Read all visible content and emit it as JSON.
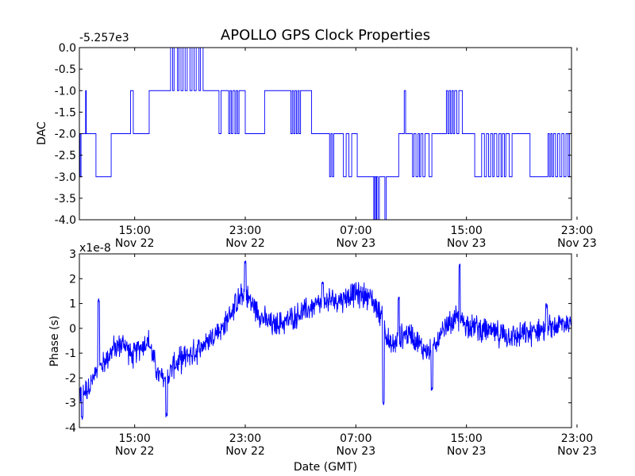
{
  "title": "APOLLO GPS Clock Properties",
  "chart_data": [
    {
      "type": "line",
      "ylabel": "DAC",
      "offset_label": "-5.257e3",
      "ylim": [
        -4.0,
        0.0
      ],
      "y_ticks": [
        "0.0",
        "-0.5",
        "-1.0",
        "-1.5",
        "-2.0",
        "-2.5",
        "-3.0",
        "-3.5",
        "-4.0"
      ],
      "x_ticks": [
        {
          "time": "15:00",
          "date": "Nov 22"
        },
        {
          "time": "23:00",
          "date": "Nov 22"
        },
        {
          "time": "07:00",
          "date": "Nov 23"
        },
        {
          "time": "15:00",
          "date": "Nov 23"
        },
        {
          "time": "23:00",
          "date": "Nov 23"
        }
      ],
      "xlim_hours": [
        11.0,
        46.6
      ],
      "line_color": "#0000ff",
      "series_note": "step signal between integer DAC levels",
      "points": [
        [
          11.0,
          -2
        ],
        [
          11.05,
          -3
        ],
        [
          11.12,
          -2
        ],
        [
          11.45,
          -1
        ],
        [
          11.5,
          -2
        ],
        [
          12.0,
          -2
        ],
        [
          12.2,
          -3
        ],
        [
          13.2,
          -3
        ],
        [
          13.3,
          -2
        ],
        [
          14.5,
          -2
        ],
        [
          14.7,
          -1
        ],
        [
          14.9,
          -2
        ],
        [
          16.0,
          -2
        ],
        [
          16.05,
          -1
        ],
        [
          17.5,
          -1
        ],
        [
          17.6,
          0
        ],
        [
          17.75,
          -1
        ],
        [
          17.85,
          0
        ],
        [
          18.1,
          -1
        ],
        [
          18.2,
          0
        ],
        [
          18.35,
          -1
        ],
        [
          18.5,
          0
        ],
        [
          18.65,
          -1
        ],
        [
          18.8,
          0
        ],
        [
          19.0,
          -1
        ],
        [
          19.15,
          0
        ],
        [
          19.3,
          -1
        ],
        [
          19.45,
          0
        ],
        [
          19.65,
          -1
        ],
        [
          19.75,
          0
        ],
        [
          19.95,
          -1
        ],
        [
          21.0,
          -1
        ],
        [
          21.1,
          -2
        ],
        [
          21.25,
          -1
        ],
        [
          21.7,
          -1
        ],
        [
          21.8,
          -2
        ],
        [
          21.9,
          -1
        ],
        [
          22.0,
          -2
        ],
        [
          22.1,
          -1
        ],
        [
          22.25,
          -2
        ],
        [
          22.35,
          -1
        ],
        [
          22.45,
          -2
        ],
        [
          22.55,
          -1
        ],
        [
          22.9,
          -1
        ],
        [
          23.0,
          -2
        ],
        [
          24.3,
          -2
        ],
        [
          24.4,
          -1
        ],
        [
          26.2,
          -1
        ],
        [
          26.3,
          -2
        ],
        [
          26.4,
          -1
        ],
        [
          26.5,
          -2
        ],
        [
          26.6,
          -1
        ],
        [
          26.7,
          -2
        ],
        [
          26.8,
          -1
        ],
        [
          26.9,
          -2
        ],
        [
          27.0,
          -1
        ],
        [
          27.7,
          -1
        ],
        [
          27.8,
          -2
        ],
        [
          29.0,
          -2
        ],
        [
          29.1,
          -3
        ],
        [
          29.2,
          -2
        ],
        [
          29.3,
          -3
        ],
        [
          29.4,
          -2
        ],
        [
          30.0,
          -2
        ],
        [
          30.1,
          -3
        ],
        [
          30.3,
          -2
        ],
        [
          30.5,
          -3
        ],
        [
          30.7,
          -2
        ],
        [
          31.0,
          -2
        ],
        [
          31.1,
          -3
        ],
        [
          32.2,
          -3
        ],
        [
          32.3,
          -4
        ],
        [
          32.35,
          -3
        ],
        [
          32.45,
          -4
        ],
        [
          32.5,
          -3
        ],
        [
          32.6,
          -4
        ],
        [
          32.7,
          -3
        ],
        [
          33.0,
          -3
        ],
        [
          33.1,
          -4
        ],
        [
          33.2,
          -3
        ],
        [
          33.3,
          -3
        ],
        [
          34.0,
          -3
        ],
        [
          34.1,
          -2
        ],
        [
          34.4,
          -2
        ],
        [
          34.5,
          -1
        ],
        [
          34.6,
          -2
        ],
        [
          35.0,
          -2
        ],
        [
          35.1,
          -3
        ],
        [
          35.2,
          -2
        ],
        [
          35.35,
          -3
        ],
        [
          35.5,
          -2
        ],
        [
          35.6,
          -3
        ],
        [
          35.7,
          -2
        ],
        [
          35.85,
          -3
        ],
        [
          36.0,
          -2
        ],
        [
          36.2,
          -2
        ],
        [
          36.3,
          -3
        ],
        [
          36.5,
          -2
        ],
        [
          37.5,
          -2
        ],
        [
          37.55,
          -1
        ],
        [
          37.65,
          -2
        ],
        [
          37.75,
          -1
        ],
        [
          37.85,
          -2
        ],
        [
          37.95,
          -1
        ],
        [
          38.05,
          -2
        ],
        [
          38.15,
          -1
        ],
        [
          38.3,
          -2
        ],
        [
          38.45,
          -1
        ],
        [
          38.7,
          -2
        ],
        [
          39.5,
          -2
        ],
        [
          39.6,
          -3
        ],
        [
          40.0,
          -3
        ],
        [
          40.1,
          -2
        ],
        [
          40.3,
          -3
        ],
        [
          40.45,
          -2
        ],
        [
          40.6,
          -3
        ],
        [
          40.75,
          -2
        ],
        [
          40.9,
          -3
        ],
        [
          41.0,
          -2
        ],
        [
          41.2,
          -3
        ],
        [
          41.35,
          -2
        ],
        [
          41.5,
          -3
        ],
        [
          41.6,
          -2
        ],
        [
          41.75,
          -3
        ],
        [
          41.85,
          -2
        ],
        [
          42.0,
          -2
        ],
        [
          42.1,
          -3
        ],
        [
          42.3,
          -2
        ],
        [
          43.5,
          -2
        ],
        [
          43.6,
          -3
        ],
        [
          44.8,
          -3
        ],
        [
          44.9,
          -2
        ],
        [
          45.0,
          -3
        ],
        [
          45.1,
          -2
        ],
        [
          45.2,
          -3
        ],
        [
          45.3,
          -2
        ],
        [
          45.45,
          -3
        ],
        [
          45.6,
          -2
        ],
        [
          45.75,
          -3
        ],
        [
          45.9,
          -2
        ],
        [
          46.05,
          -3
        ],
        [
          46.2,
          -2
        ],
        [
          46.35,
          -3
        ],
        [
          46.45,
          -2
        ],
        [
          46.6,
          -2
        ]
      ]
    },
    {
      "type": "line",
      "ylabel": "Phase (s)",
      "xlabel": "Date (GMT)",
      "offset_label": "x1e-8",
      "ylim": [
        -4,
        3
      ],
      "y_ticks": [
        "3",
        "2",
        "1",
        "0",
        "-1",
        "-2",
        "-3",
        "-4"
      ],
      "x_ticks": [
        {
          "time": "15:00",
          "date": "Nov 22"
        },
        {
          "time": "23:00",
          "date": "Nov 22"
        },
        {
          "time": "07:00",
          "date": "Nov 23"
        },
        {
          "time": "15:00",
          "date": "Nov 23"
        },
        {
          "time": "23:00",
          "date": "Nov 23"
        }
      ],
      "xlim_hours": [
        11.0,
        46.6
      ],
      "line_color": "#0000ff",
      "series_note": "noisy phase trace; baseline approximated, noise added by script",
      "noise_amplitude": 0.45,
      "baseline": [
        [
          11.0,
          -2.6
        ],
        [
          11.5,
          -2.5
        ],
        [
          12.5,
          -1.6
        ],
        [
          13.5,
          -0.8
        ],
        [
          14.3,
          -0.6
        ],
        [
          14.8,
          -1.2
        ],
        [
          15.3,
          -0.8
        ],
        [
          16.0,
          -0.5
        ],
        [
          16.7,
          -1.9
        ],
        [
          17.3,
          -2.1
        ],
        [
          17.8,
          -1.5
        ],
        [
          18.5,
          -1.2
        ],
        [
          19.5,
          -0.9
        ],
        [
          20.5,
          -0.4
        ],
        [
          21.5,
          0.1
        ],
        [
          22.3,
          1.0
        ],
        [
          23.0,
          1.4
        ],
        [
          23.6,
          0.9
        ],
        [
          24.3,
          0.4
        ],
        [
          25.0,
          0.1
        ],
        [
          26.0,
          0.3
        ],
        [
          27.0,
          0.6
        ],
        [
          28.0,
          0.9
        ],
        [
          29.0,
          1.1
        ],
        [
          30.0,
          1.2
        ],
        [
          31.0,
          1.4
        ],
        [
          32.0,
          1.3
        ],
        [
          32.8,
          0.6
        ],
        [
          33.5,
          -0.8
        ],
        [
          34.3,
          -0.3
        ],
        [
          35.0,
          -0.2
        ],
        [
          35.8,
          -0.8
        ],
        [
          36.5,
          -1.0
        ],
        [
          37.5,
          0.0
        ],
        [
          38.2,
          0.4
        ],
        [
          39.0,
          0.2
        ],
        [
          40.0,
          0.0
        ],
        [
          41.0,
          -0.2
        ],
        [
          42.0,
          -0.3
        ],
        [
          43.0,
          -0.3
        ],
        [
          44.0,
          -0.1
        ],
        [
          45.0,
          0.0
        ],
        [
          46.0,
          0.2
        ],
        [
          46.6,
          0.2
        ]
      ],
      "spikes": [
        [
          11.2,
          -3.6
        ],
        [
          12.4,
          1.1
        ],
        [
          17.3,
          -3.5
        ],
        [
          23.0,
          2.7
        ],
        [
          28.6,
          1.8
        ],
        [
          33.0,
          -3.0
        ],
        [
          34.1,
          1.2
        ],
        [
          36.5,
          -2.5
        ],
        [
          38.5,
          2.5
        ],
        [
          44.8,
          0.9
        ]
      ]
    }
  ]
}
